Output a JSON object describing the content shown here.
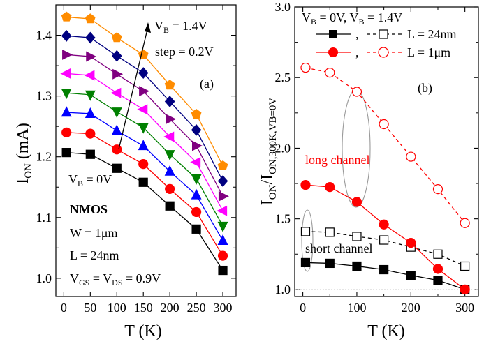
{
  "chart_data": [
    {
      "type": "line",
      "panel_label": "(a)",
      "xlabel": "T (K)",
      "ylabel": {
        "main": "I",
        "sub": "ON",
        "rest": " (mA)"
      },
      "xlim": [
        -15,
        325
      ],
      "ylim": [
        0.97,
        1.45
      ],
      "xticks": [
        0,
        50,
        100,
        150,
        200,
        250,
        300
      ],
      "yticks": [
        "1.0",
        "1.1",
        "1.2",
        "1.3",
        "1.4"
      ],
      "yticks_values": [
        1.0,
        1.1,
        1.2,
        1.3,
        1.4
      ],
      "x": [
        5,
        50,
        100,
        150,
        200,
        250,
        300
      ],
      "series": [
        {
          "color": "#000000",
          "marker": "square",
          "values": [
            1.207,
            1.204,
            1.181,
            1.158,
            1.119,
            1.081,
            1.013
          ]
        },
        {
          "color": "#ff0000",
          "marker": "circle",
          "values": [
            1.24,
            1.238,
            1.212,
            1.188,
            1.147,
            1.109,
            1.037
          ]
        },
        {
          "color": "#0000ff",
          "marker": "triangle-up",
          "values": [
            1.273,
            1.271,
            1.243,
            1.218,
            1.176,
            1.137,
            1.062
          ]
        },
        {
          "color": "#008000",
          "marker": "triangle-down",
          "values": [
            1.305,
            1.302,
            1.274,
            1.248,
            1.204,
            1.164,
            1.086
          ]
        },
        {
          "color": "#ff00ff",
          "marker": "triangle-left",
          "values": [
            1.337,
            1.334,
            1.305,
            1.278,
            1.233,
            1.191,
            1.111
          ]
        },
        {
          "color": "#800080",
          "marker": "triangle-right",
          "values": [
            1.368,
            1.365,
            1.336,
            1.308,
            1.262,
            1.218,
            1.135
          ]
        },
        {
          "color": "#000080",
          "marker": "diamond",
          "values": [
            1.399,
            1.396,
            1.366,
            1.338,
            1.291,
            1.244,
            1.16
          ]
        },
        {
          "color": "#ff8c00",
          "marker": "pentagon",
          "values": [
            1.43,
            1.427,
            1.396,
            1.368,
            1.318,
            1.27,
            1.185
          ]
        }
      ],
      "annotations": {
        "vb_top": {
          "main": "V",
          "sub": "B",
          "rest": " = 1.4V"
        },
        "step": "step = 0.2V",
        "vb_bottom": {
          "main": "V",
          "sub": "B",
          "rest": " = 0V"
        },
        "device": "NMOS",
        "width": "W = 1μm",
        "length": "L = 24nm",
        "bias": {
          "a": "V",
          "a_sub": "GS",
          "b": " = V",
          "b_sub": "DS",
          "c": " = 0.9V"
        }
      }
    },
    {
      "type": "line",
      "panel_label": "(b)",
      "xlabel": "T (K)",
      "ylabel": {
        "a": "I",
        "a_sub": "ON",
        "b": "/I",
        "b_sub": "ON,300K,VB=0V"
      },
      "xlim": [
        -15,
        325
      ],
      "ylim": [
        0.95,
        3.0
      ],
      "xticks": [
        0,
        100,
        200,
        300
      ],
      "xticks_minor": [
        50,
        150,
        250
      ],
      "yticks": [
        "1.0",
        "1.5",
        "2.0",
        "2.5",
        "3.0"
      ],
      "yticks_values": [
        1.0,
        1.5,
        2.0,
        2.5,
        3.0
      ],
      "x": [
        5,
        50,
        100,
        150,
        200,
        250,
        300
      ],
      "series": [
        {
          "color": "#000000",
          "marker": "square",
          "filled": true,
          "dashed": false,
          "values": [
            1.19,
            1.185,
            1.165,
            1.14,
            1.1,
            1.065,
            1.0
          ]
        },
        {
          "color": "#000000",
          "marker": "square",
          "filled": false,
          "dashed": true,
          "values": [
            1.41,
            1.405,
            1.375,
            1.35,
            1.3,
            1.25,
            1.165
          ]
        },
        {
          "color": "#ff0000",
          "marker": "circle",
          "filled": true,
          "dashed": false,
          "values": [
            1.74,
            1.725,
            1.62,
            1.46,
            1.33,
            1.145,
            1.0
          ]
        },
        {
          "color": "#ff0000",
          "marker": "circle",
          "filled": false,
          "dashed": true,
          "values": [
            2.57,
            2.535,
            2.4,
            2.17,
            1.94,
            1.71,
            1.47
          ]
        }
      ],
      "legend": {
        "title": {
          "a": "V",
          "a_sub": "B",
          "b": " = 0V, V",
          "b_sub": "B",
          "c": " = 1.4V"
        },
        "sep": ",",
        "entries": [
          "L = 24nm",
          "L = 1μm"
        ]
      },
      "annotations": {
        "long_channel": "long channel",
        "short_channel": "short channel"
      },
      "reference_line": 1.0
    }
  ]
}
